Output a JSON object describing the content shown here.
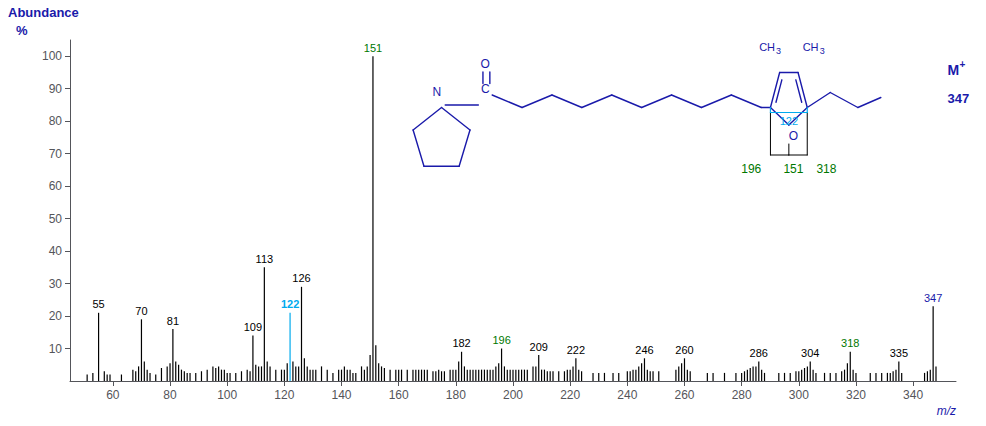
{
  "chart_data": {
    "type": "bar",
    "xlabel": "m/z",
    "ylabel": "Abundance",
    "annotations": [
      {
        "text": "M",
        "color": "#1a1aaa"
      },
      {
        "text": "+",
        "color": "#1a1aaa"
      },
      {
        "text": "347",
        "color": "#1a1aaa"
      },
      {
        "text": "N",
        "color": "#1a1aaa"
      },
      {
        "text": "C",
        "color": "#1a1aaa"
      },
      {
        "text": "O",
        "color": "#1a1aaa"
      },
      {
        "text": "O",
        "color": "#1a1aaa"
      },
      {
        "text": "CH",
        "color": "#1a1aaa"
      },
      {
        "text": "3",
        "color": "#1a1aaa"
      },
      {
        "text": "CH",
        "color": "#1a1aaa"
      },
      {
        "text": "3",
        "color": "#1a1aaa"
      },
      {
        "text": "196",
        "color": "#007700"
      },
      {
        "text": "151",
        "color": "#007700"
      },
      {
        "text": "318",
        "color": "#007700"
      },
      {
        "text": "122",
        "color": "#00aaee"
      },
      {
        "text": "%",
        "color": "#1a1aaa"
      }
    ],
    "x": [
      51,
      53,
      55,
      57,
      58,
      59,
      63,
      67,
      68,
      69,
      70,
      71,
      72,
      73,
      75,
      77,
      79,
      80,
      81,
      82,
      83,
      84,
      85,
      86,
      87,
      89,
      91,
      93,
      95,
      96,
      97,
      98,
      99,
      100,
      101,
      103,
      105,
      107,
      108,
      109,
      110,
      111,
      112,
      113,
      114,
      115,
      117,
      119,
      120,
      121,
      122,
      123,
      124,
      125,
      126,
      127,
      128,
      129,
      130,
      131,
      133,
      135,
      137,
      139,
      140,
      141,
      142,
      143,
      144,
      145,
      147,
      148,
      149,
      150,
      151,
      152,
      153,
      154,
      155,
      157,
      159,
      160,
      161,
      163,
      165,
      166,
      167,
      168,
      169,
      170,
      172,
      173,
      174,
      175,
      176,
      178,
      179,
      180,
      181,
      182,
      183,
      184,
      185,
      186,
      187,
      188,
      189,
      190,
      191,
      192,
      193,
      194,
      195,
      196,
      197,
      198,
      199,
      200,
      201,
      202,
      203,
      204,
      205,
      207,
      208,
      209,
      210,
      211,
      212,
      213,
      214,
      216,
      218,
      219,
      220,
      221,
      222,
      223,
      224,
      228,
      230,
      232,
      235,
      237,
      240,
      241,
      242,
      243,
      244,
      245,
      246,
      247,
      248,
      249,
      251,
      257,
      258,
      259,
      260,
      261,
      262,
      268,
      270,
      274,
      278,
      280,
      281,
      282,
      283,
      284,
      285,
      286,
      287,
      288,
      293,
      295,
      297,
      299,
      300,
      301,
      302,
      303,
      304,
      305,
      306,
      309,
      311,
      313,
      315,
      316,
      317,
      318,
      319,
      320,
      325,
      327,
      329,
      331,
      332,
      333,
      334,
      335,
      336,
      344,
      345,
      346,
      347,
      348
    ],
    "values": [
      2.0,
      2.5,
      21.0,
      3.0,
      2.0,
      2.0,
      2.0,
      3.5,
      3.0,
      4.5,
      19.0,
      6.0,
      3.5,
      2.5,
      2.0,
      4.0,
      4.5,
      5.5,
      16.0,
      6.0,
      5.0,
      3.5,
      3.0,
      2.5,
      2.5,
      2.5,
      3.0,
      3.5,
      4.5,
      4.0,
      4.5,
      3.5,
      3.5,
      2.5,
      2.5,
      2.5,
      3.0,
      3.5,
      3.0,
      14.0,
      5.0,
      4.5,
      4.5,
      35.0,
      6.0,
      4.5,
      3.5,
      3.5,
      3.5,
      5.5,
      21.0,
      6.0,
      4.5,
      4.5,
      29.0,
      7.0,
      4.5,
      3.5,
      3.5,
      3.5,
      4.5,
      3.5,
      2.5,
      3.5,
      3.5,
      4.5,
      3.5,
      3.5,
      2.5,
      2.5,
      4.5,
      3.5,
      4.5,
      8.0,
      100.0,
      11.0,
      5.5,
      4.5,
      4.0,
      3.5,
      3.5,
      3.5,
      3.5,
      3.5,
      3.5,
      3.5,
      3.5,
      3.5,
      3.5,
      3.5,
      3.0,
      3.0,
      3.5,
      3.0,
      3.0,
      3.5,
      3.5,
      3.5,
      6.0,
      9.0,
      4.5,
      3.5,
      3.5,
      3.5,
      3.5,
      3.5,
      3.5,
      3.5,
      3.5,
      3.5,
      3.5,
      4.5,
      5.5,
      10.0,
      4.5,
      3.5,
      3.5,
      3.5,
      3.5,
      3.5,
      3.5,
      3.5,
      3.5,
      4.5,
      4.5,
      8.0,
      3.5,
      3.5,
      3.0,
      3.0,
      3.0,
      3.0,
      3.0,
      3.5,
      3.5,
      4.5,
      7.0,
      3.5,
      3.0,
      2.5,
      2.5,
      2.5,
      2.5,
      2.5,
      3.0,
      3.0,
      3.5,
      3.5,
      4.5,
      5.5,
      7.0,
      3.5,
      3.0,
      3.0,
      3.0,
      3.5,
      4.5,
      5.5,
      7.0,
      3.5,
      3.0,
      2.5,
      2.5,
      2.5,
      2.5,
      2.5,
      3.0,
      3.5,
      4.0,
      4.5,
      4.5,
      6.0,
      3.5,
      2.5,
      2.5,
      2.5,
      2.5,
      3.0,
      3.0,
      3.5,
      4.0,
      4.5,
      6.0,
      3.5,
      2.5,
      2.5,
      2.5,
      2.5,
      3.0,
      3.5,
      5.5,
      9.0,
      3.5,
      2.5,
      2.5,
      2.5,
      2.5,
      2.5,
      2.5,
      3.0,
      3.5,
      6.0,
      2.5,
      2.5,
      3.0,
      3.5,
      23.0,
      4.5
    ],
    "colors": [
      "#000000",
      "#000000",
      "#000000",
      "#000000",
      "#000000",
      "#000000",
      "#000000",
      "#000000",
      "#000000",
      "#000000",
      "#000000",
      "#000000",
      "#000000",
      "#000000",
      "#000000",
      "#000000",
      "#000000",
      "#000000",
      "#000000",
      "#000000",
      "#000000",
      "#000000",
      "#000000",
      "#000000",
      "#000000",
      "#000000",
      "#000000",
      "#000000",
      "#000000",
      "#000000",
      "#000000",
      "#000000",
      "#000000",
      "#000000",
      "#000000",
      "#000000",
      "#000000",
      "#000000",
      "#000000",
      "#000000",
      "#000000",
      "#000000",
      "#000000",
      "#000000",
      "#000000",
      "#000000",
      "#000000",
      "#000000",
      "#000000",
      "#000000",
      "#00aaee",
      "#000000",
      "#000000",
      "#000000",
      "#000000",
      "#000000",
      "#000000",
      "#000000",
      "#000000",
      "#000000",
      "#000000",
      "#000000",
      "#000000",
      "#000000",
      "#000000",
      "#000000",
      "#000000",
      "#000000",
      "#000000",
      "#000000",
      "#000000",
      "#000000",
      "#000000",
      "#000000",
      "#000000",
      "#000000",
      "#000000",
      "#000000",
      "#000000",
      "#000000",
      "#000000",
      "#000000",
      "#000000",
      "#000000",
      "#000000",
      "#000000",
      "#000000",
      "#000000",
      "#000000",
      "#000000",
      "#000000",
      "#000000",
      "#000000",
      "#000000",
      "#000000",
      "#000000",
      "#000000",
      "#000000",
      "#000000",
      "#000000",
      "#000000",
      "#000000",
      "#000000",
      "#000000",
      "#000000",
      "#000000",
      "#000000",
      "#000000",
      "#000000",
      "#000000",
      "#000000",
      "#000000",
      "#000000",
      "#000000",
      "#000000",
      "#000000",
      "#000000",
      "#000000",
      "#000000",
      "#000000",
      "#000000",
      "#000000",
      "#000000",
      "#000000",
      "#000000",
      "#000000",
      "#000000",
      "#000000",
      "#000000",
      "#000000",
      "#000000",
      "#000000",
      "#000000",
      "#000000",
      "#000000",
      "#000000",
      "#000000",
      "#000000",
      "#000000",
      "#000000",
      "#000000",
      "#000000",
      "#000000",
      "#000000",
      "#000000",
      "#000000",
      "#000000",
      "#000000",
      "#000000",
      "#000000",
      "#000000",
      "#000000",
      "#000000",
      "#000000",
      "#000000",
      "#000000",
      "#000000",
      "#000000",
      "#000000",
      "#000000",
      "#000000",
      "#000000",
      "#000000",
      "#000000",
      "#000000",
      "#000000",
      "#000000",
      "#000000",
      "#000000",
      "#000000",
      "#000000",
      "#000000",
      "#000000",
      "#000000",
      "#000000",
      "#000000",
      "#000000",
      "#000000",
      "#000000",
      "#000000",
      "#000000",
      "#000000",
      "#000000",
      "#000000",
      "#000000",
      "#000000",
      "#000000",
      "#000000",
      "#000000",
      "#000000",
      "#000000",
      "#000000",
      "#000000",
      "#000000",
      "#000000",
      "#000000",
      "#000000",
      "#000000",
      "#000000",
      "#000000",
      "#000000",
      "#000000",
      "#000000",
      "#000000",
      "#000000",
      "#000000",
      "#000000",
      "#000000"
    ],
    "labels": [
      null,
      null,
      "55",
      null,
      null,
      null,
      null,
      null,
      null,
      null,
      "70",
      null,
      null,
      null,
      null,
      null,
      null,
      null,
      "81",
      null,
      null,
      null,
      null,
      null,
      null,
      null,
      null,
      null,
      null,
      null,
      null,
      null,
      null,
      null,
      null,
      null,
      null,
      null,
      null,
      "109",
      null,
      null,
      null,
      "113",
      null,
      null,
      null,
      null,
      null,
      null,
      "122",
      null,
      null,
      null,
      "126",
      null,
      null,
      null,
      null,
      null,
      null,
      null,
      null,
      null,
      null,
      null,
      null,
      null,
      null,
      null,
      null,
      null,
      null,
      null,
      "151",
      null,
      null,
      null,
      null,
      null,
      null,
      null,
      null,
      null,
      null,
      null,
      null,
      null,
      null,
      null,
      null,
      null,
      null,
      null,
      null,
      null,
      null,
      null,
      null,
      "182",
      null,
      null,
      null,
      null,
      null,
      null,
      null,
      null,
      null,
      null,
      null,
      null,
      null,
      "196",
      null,
      null,
      null,
      null,
      null,
      null,
      null,
      null,
      null,
      null,
      null,
      "209",
      null,
      null,
      null,
      null,
      null,
      null,
      null,
      null,
      null,
      null,
      "222",
      null,
      null,
      null,
      null,
      null,
      null,
      null,
      null,
      null,
      null,
      null,
      null,
      null,
      "246",
      null,
      null,
      null,
      null,
      null,
      null,
      null,
      "260",
      null,
      null,
      null,
      null,
      null,
      null,
      null,
      null,
      null,
      null,
      null,
      null,
      "286",
      null,
      null,
      null,
      null,
      null,
      null,
      null,
      null,
      null,
      null,
      "304",
      null,
      null,
      null,
      null,
      null,
      null,
      null,
      null,
      "318",
      null,
      null,
      null,
      null,
      null,
      null,
      null,
      null,
      null,
      "335",
      null,
      null,
      null,
      null,
      "347",
      null
    ],
    "label_colors": [
      null,
      null,
      "#000000",
      null,
      null,
      null,
      null,
      null,
      null,
      null,
      "#000000",
      null,
      null,
      null,
      null,
      null,
      null,
      null,
      "#000000",
      null,
      null,
      null,
      null,
      null,
      null,
      null,
      null,
      null,
      null,
      null,
      null,
      null,
      null,
      null,
      null,
      null,
      null,
      null,
      null,
      "#000000",
      null,
      null,
      null,
      "#000000",
      null,
      null,
      null,
      null,
      null,
      null,
      "#00aaee",
      null,
      null,
      null,
      "#000000",
      null,
      null,
      null,
      null,
      null,
      null,
      null,
      null,
      null,
      null,
      null,
      null,
      null,
      null,
      null,
      null,
      null,
      null,
      null,
      "#007700",
      null,
      null,
      null,
      null,
      null,
      null,
      null,
      null,
      null,
      null,
      null,
      null,
      null,
      null,
      null,
      null,
      null,
      null,
      null,
      null,
      null,
      null,
      null,
      null,
      "#000000",
      null,
      null,
      null,
      null,
      null,
      null,
      null,
      null,
      null,
      null,
      null,
      null,
      null,
      "#007700",
      null,
      null,
      null,
      null,
      null,
      null,
      null,
      null,
      null,
      null,
      null,
      "#000000",
      null,
      null,
      null,
      null,
      null,
      null,
      null,
      null,
      null,
      null,
      "#000000",
      null,
      null,
      null,
      null,
      null,
      null,
      null,
      null,
      null,
      null,
      null,
      null,
      null,
      "#000000",
      null,
      null,
      null,
      null,
      null,
      null,
      null,
      "#000000",
      null,
      null,
      null,
      null,
      null,
      null,
      null,
      null,
      null,
      null,
      null,
      null,
      "#000000",
      null,
      null,
      null,
      null,
      null,
      null,
      null,
      null,
      null,
      null,
      "#000000",
      null,
      null,
      null,
      null,
      null,
      null,
      null,
      null,
      "#007700",
      null,
      null,
      null,
      null,
      null,
      null,
      null,
      null,
      null,
      "#000000",
      null,
      null,
      null,
      null,
      "#1a1aaa",
      null
    ],
    "xlim": [
      45,
      355
    ],
    "ylim": [
      0,
      105
    ],
    "xticks": [
      60,
      80,
      100,
      120,
      140,
      160,
      180,
      200,
      220,
      240,
      260,
      280,
      300,
      320,
      340
    ],
    "yticks": [
      10,
      20,
      30,
      40,
      50,
      60,
      70,
      80,
      90,
      100
    ],
    "grid": false
  }
}
